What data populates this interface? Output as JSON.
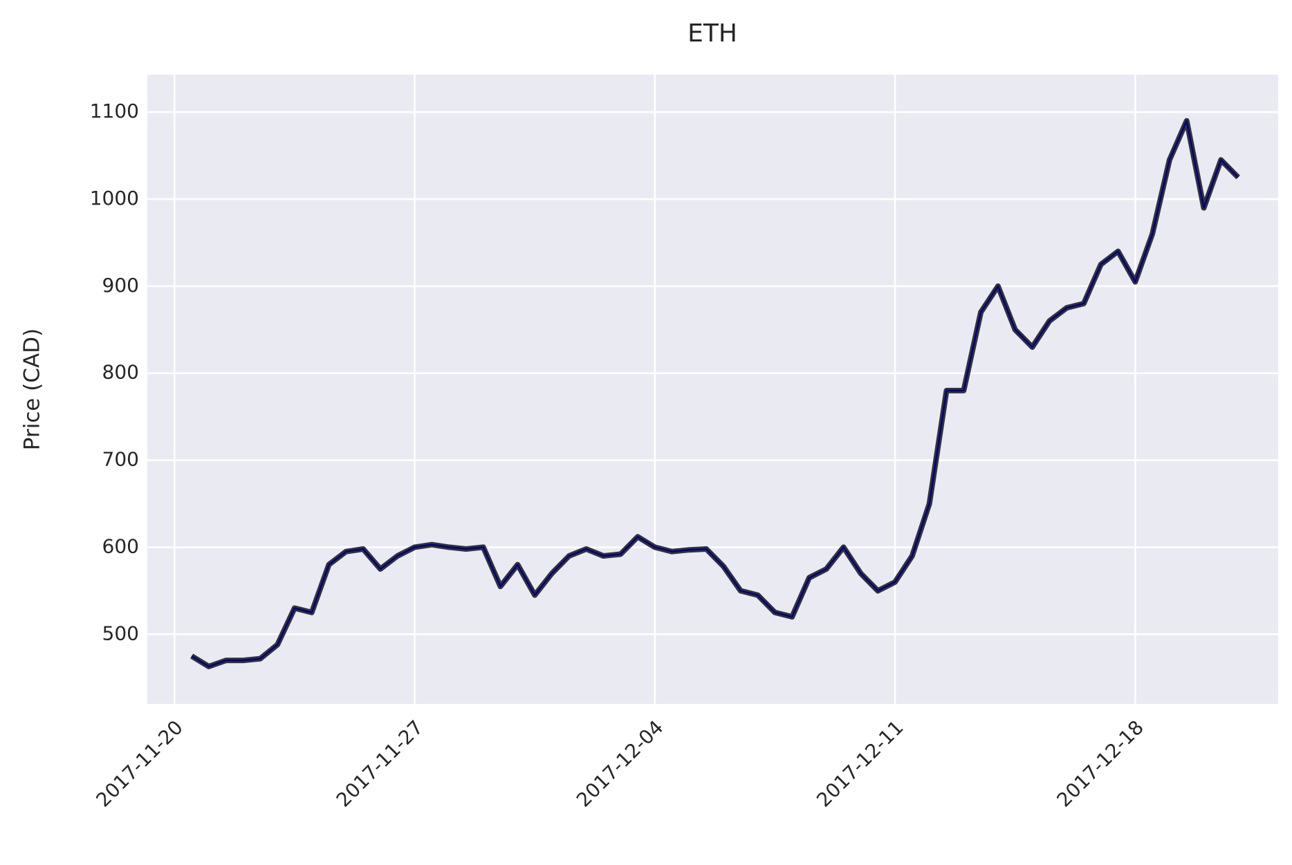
{
  "chart_data": {
    "type": "line",
    "title": "ETH",
    "y_label": "Price (CAD)",
    "x": [
      "2017-11-20 12:00",
      "2017-11-21 00:00",
      "2017-11-21 12:00",
      "2017-11-22 00:00",
      "2017-11-22 12:00",
      "2017-11-23 00:00",
      "2017-11-23 12:00",
      "2017-11-24 00:00",
      "2017-11-24 12:00",
      "2017-11-25 00:00",
      "2017-11-25 12:00",
      "2017-11-26 00:00",
      "2017-11-26 12:00",
      "2017-11-27 00:00",
      "2017-11-27 12:00",
      "2017-11-28 00:00",
      "2017-11-28 12:00",
      "2017-11-29 00:00",
      "2017-11-29 12:00",
      "2017-11-30 00:00",
      "2017-11-30 12:00",
      "2017-12-01 00:00",
      "2017-12-01 12:00",
      "2017-12-02 00:00",
      "2017-12-02 12:00",
      "2017-12-03 00:00",
      "2017-12-03 12:00",
      "2017-12-04 00:00",
      "2017-12-04 12:00",
      "2017-12-05 00:00",
      "2017-12-05 12:00",
      "2017-12-06 00:00",
      "2017-12-06 12:00",
      "2017-12-07 00:00",
      "2017-12-07 12:00",
      "2017-12-08 00:00",
      "2017-12-08 12:00",
      "2017-12-09 00:00",
      "2017-12-09 12:00",
      "2017-12-10 00:00",
      "2017-12-10 12:00",
      "2017-12-11 00:00",
      "2017-12-11 12:00",
      "2017-12-12 00:00",
      "2017-12-12 12:00",
      "2017-12-13 00:00",
      "2017-12-13 12:00",
      "2017-12-14 00:00",
      "2017-12-14 12:00",
      "2017-12-15 00:00",
      "2017-12-15 12:00",
      "2017-12-16 00:00",
      "2017-12-16 12:00",
      "2017-12-17 00:00",
      "2017-12-17 12:00",
      "2017-12-18 00:00",
      "2017-12-18 12:00",
      "2017-12-19 00:00",
      "2017-12-19 12:00",
      "2017-12-20 00:00",
      "2017-12-20 12:00",
      "2017-12-21 00:00"
    ],
    "values": [
      475,
      463,
      470,
      470,
      472,
      488,
      530,
      525,
      580,
      595,
      598,
      575,
      590,
      600,
      603,
      600,
      598,
      600,
      555,
      580,
      545,
      570,
      590,
      598,
      590,
      592,
      612,
      600,
      595,
      597,
      598,
      578,
      550,
      545,
      525,
      520,
      565,
      575,
      600,
      570,
      550,
      560,
      590,
      650,
      780,
      780,
      870,
      900,
      850,
      830,
      860,
      875,
      880,
      925,
      940,
      905,
      960,
      1045,
      1090,
      990,
      1045,
      1025
    ],
    "color": "#00008b",
    "xlim": [
      "2017-11-19 05:00",
      "2017-12-22 04:00"
    ],
    "xticks": [
      "2017-11-20",
      "2017-11-27",
      "2017-12-04",
      "2017-12-11",
      "2017-12-18"
    ],
    "ylim": [
      420,
      1143
    ],
    "yticks": [
      500,
      600,
      700,
      800,
      900,
      1000,
      1100
    ],
    "grid": true
  }
}
